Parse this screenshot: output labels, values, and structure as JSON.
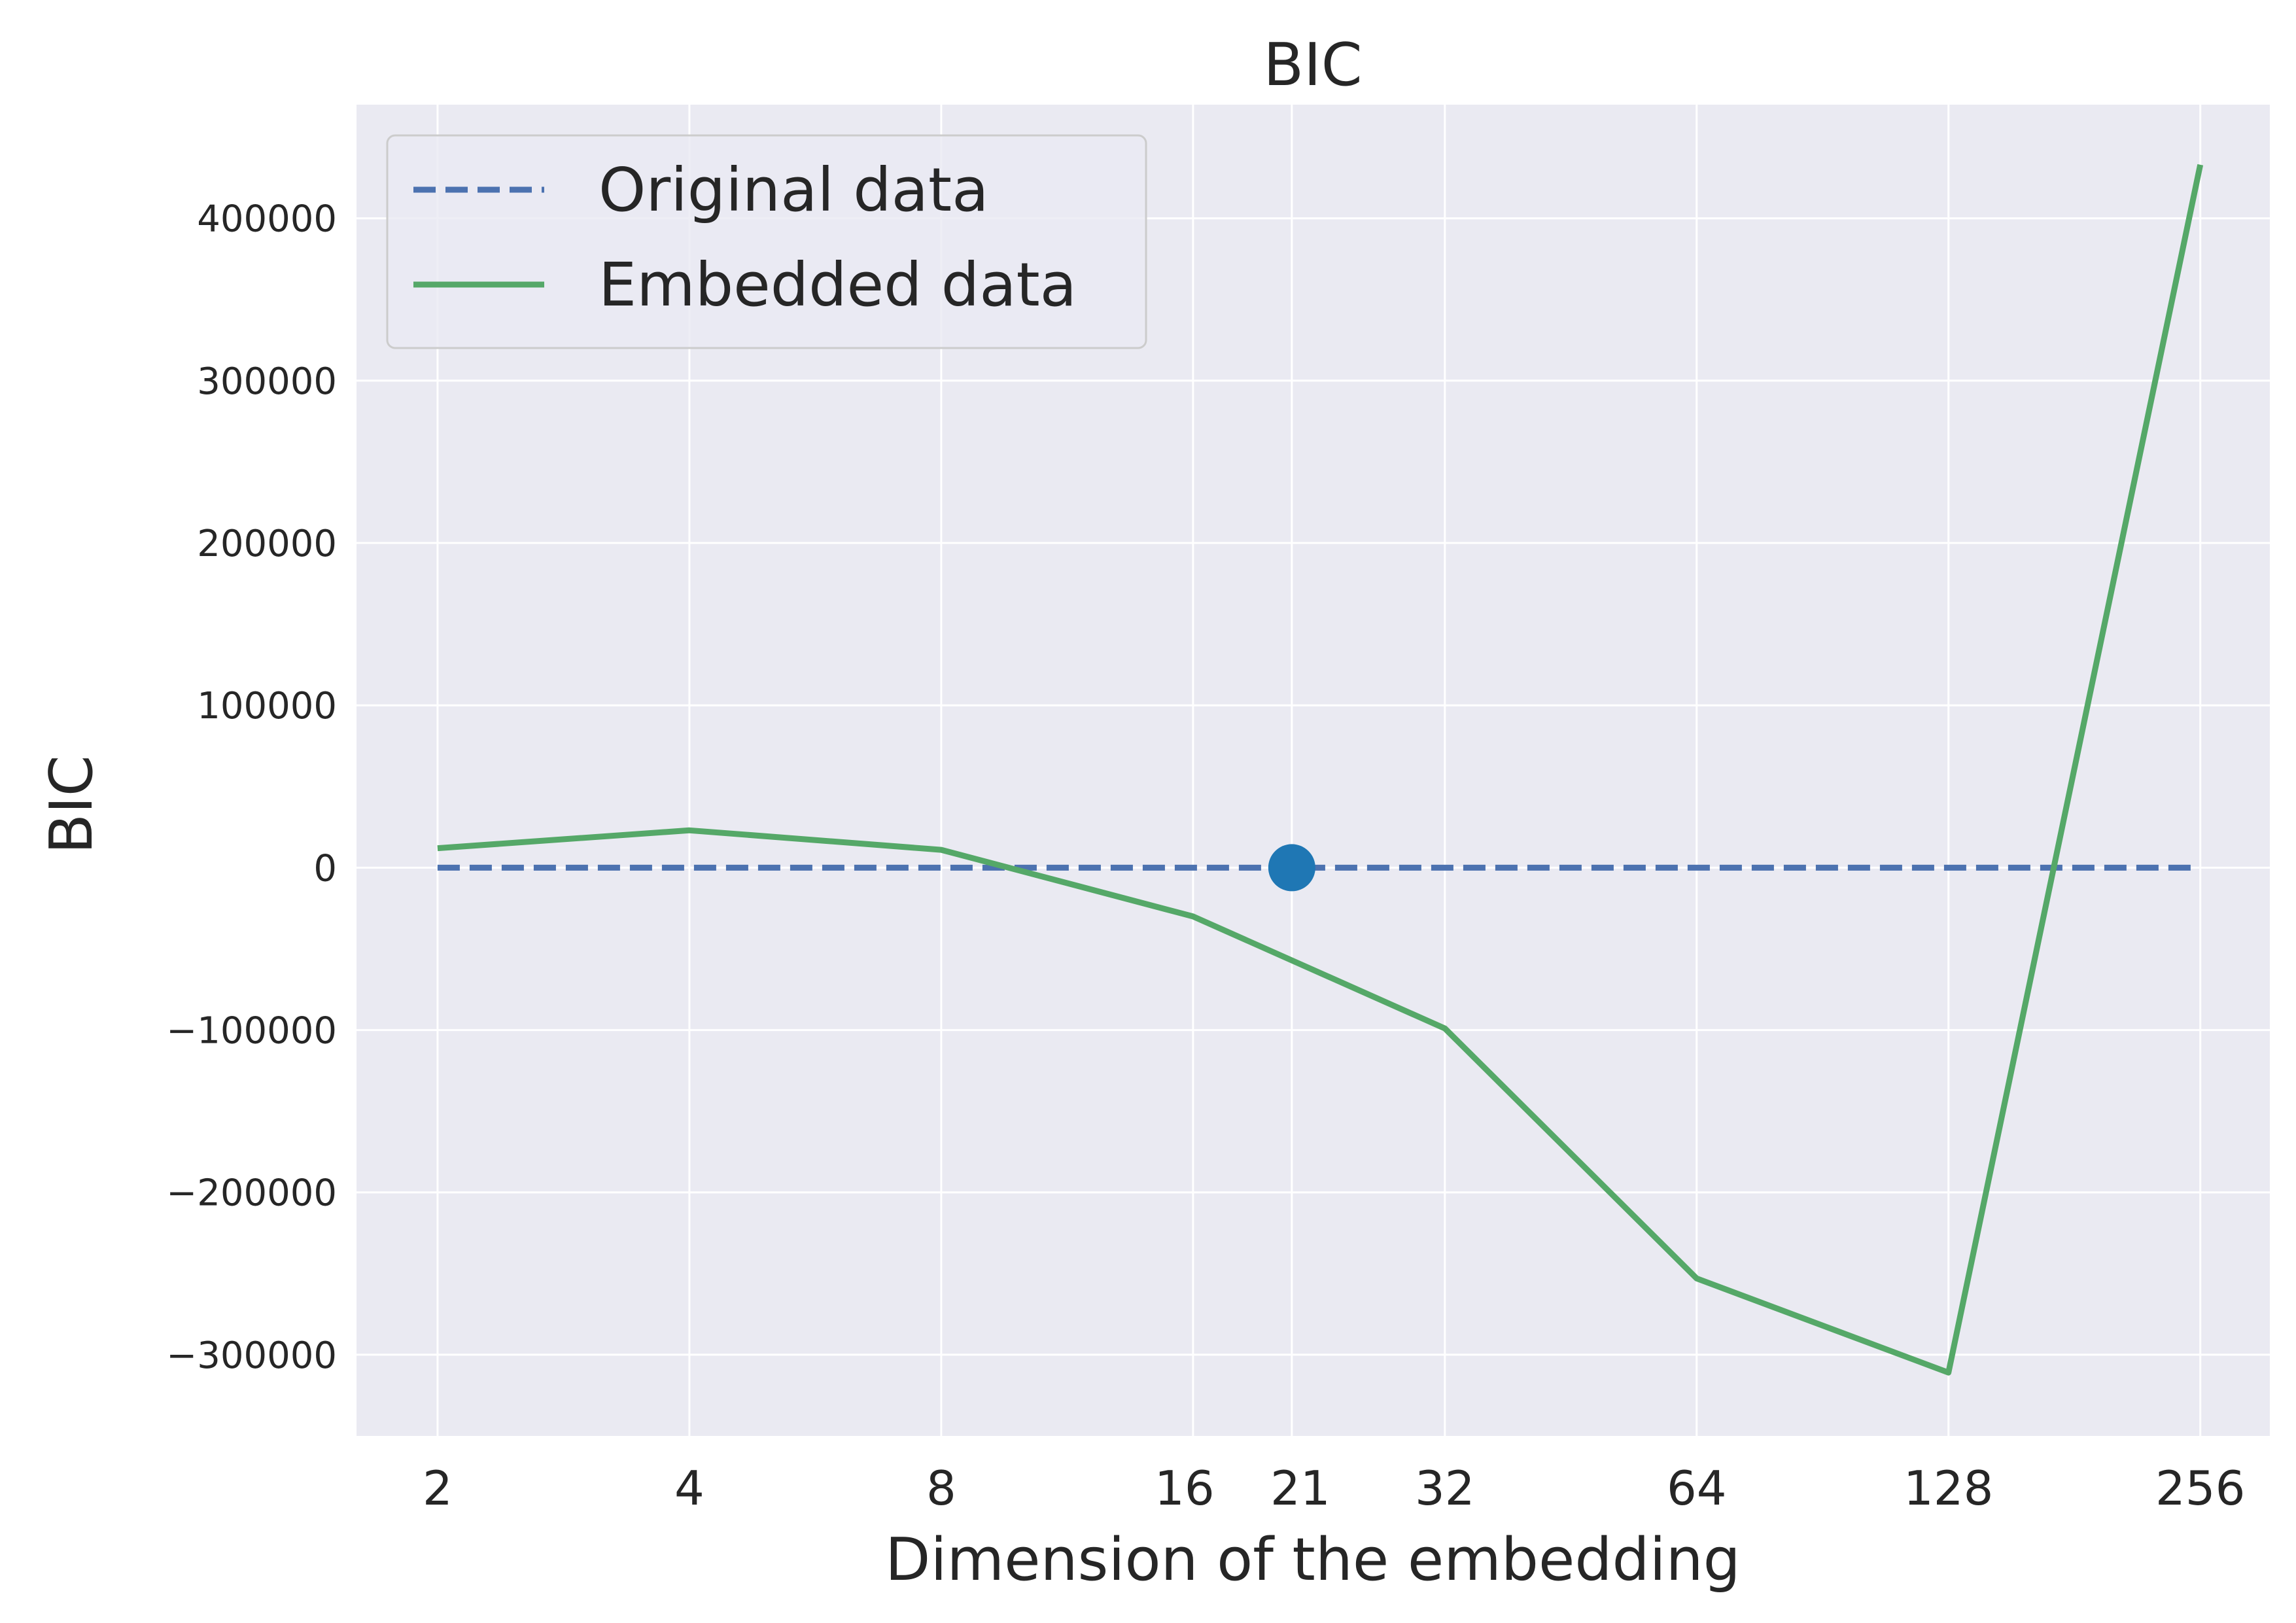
{
  "chart_data": {
    "type": "line",
    "title": "BIC",
    "xlabel": "Dimension of the embedding",
    "ylabel": "BIC",
    "x_scale": "log2",
    "xlim": [
      1.6,
      310
    ],
    "ylim": [
      -350000,
      470000
    ],
    "x_ticks": [
      2,
      4,
      8,
      16,
      21,
      32,
      64,
      128,
      256
    ],
    "y_ticks": [
      400000,
      300000,
      200000,
      100000,
      0,
      -100000,
      -200000,
      -300000
    ],
    "y_tick_labels": [
      "400000",
      "300000",
      "200000",
      "100000",
      "0",
      "−100000",
      "−200000",
      "−300000"
    ],
    "grid": true,
    "legend_position": "upper-left",
    "series": [
      {
        "name": "Original data",
        "style": "dashed",
        "color": "#4c72b0",
        "x": [
          2,
          4,
          8,
          16,
          21,
          32,
          64,
          128,
          256
        ],
        "y": [
          0,
          0,
          0,
          0,
          0,
          0,
          0,
          0,
          0
        ]
      },
      {
        "name": "Embedded data",
        "style": "solid",
        "color": "#55a868",
        "x": [
          2,
          4,
          8,
          16,
          32,
          64,
          128,
          256
        ],
        "y": [
          12000,
          23000,
          11000,
          -30000,
          -99000,
          -253000,
          -311000,
          433000
        ]
      }
    ],
    "marker": {
      "x": 21,
      "y": 0,
      "color": "#1f77b4"
    },
    "colors": {
      "background": "#eaeaf2",
      "grid": "#ffffff",
      "text": "#262626"
    }
  }
}
